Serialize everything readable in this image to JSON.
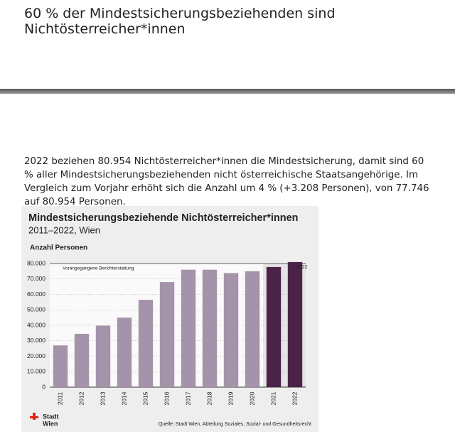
{
  "page": {
    "headline": "60 % der Mindestsicherungsbeziehenden sind Nichtösterreicher*innen",
    "paragraph": "2022 beziehen 80.954 Nichtösterreicher*innen die Mindestsicherung, damit sind 60 % aller Mindestsicherungsbeziehenden nicht österreichische Staatsangehörige. Im Vergleich zum Vorjahr erhöht sich die Anzahl um 4 % (+3.208 Personen), von 77.746 auf 80.954 Personen.",
    "logo": [
      "Stadt",
      "Wien"
    ]
  },
  "chart_data": {
    "type": "bar",
    "title": "Mindestsicherungsbeziehende Nichtösterreicher*innen",
    "subtitle": "2011–2022, Wien",
    "y_label": "Anzahl Personen",
    "annotations": [
      "Vorangegangene Berichterstattung",
      "2022"
    ],
    "source": "Quelle: Stadt Wien, Abteilung Soziales, Sozial- und Gesundheitsrecht",
    "categories": [
      "2011",
      "2012",
      "2013",
      "2014",
      "2015",
      "2016",
      "2017",
      "2018",
      "2019",
      "2020",
      "2021",
      "2022"
    ],
    "values": [
      27000,
      34500,
      39800,
      45000,
      56500,
      68000,
      76000,
      76000,
      73800,
      75000,
      77746,
      80954
    ],
    "colors": [
      "#a493a9",
      "#a493a9",
      "#a493a9",
      "#a493a9",
      "#a493a9",
      "#a493a9",
      "#a493a9",
      "#a493a9",
      "#a493a9",
      "#a493a9",
      "#4b2348",
      "#4b2348"
    ],
    "ylim": [
      0,
      80000
    ],
    "yticks": [
      0,
      {
        "value": 10000,
        "label": "10.000"
      },
      {
        "value": 20000,
        "label": "20.000"
      },
      {
        "value": 30000,
        "label": "30.000"
      },
      {
        "value": 40000,
        "label": "40.000"
      },
      {
        "value": 50000,
        "label": "50.000"
      },
      {
        "value": 60000,
        "label": "60.000"
      },
      {
        "value": 70000,
        "label": "70.000"
      },
      {
        "value": 80000,
        "label": "80.000"
      }
    ],
    "grid": true
  }
}
